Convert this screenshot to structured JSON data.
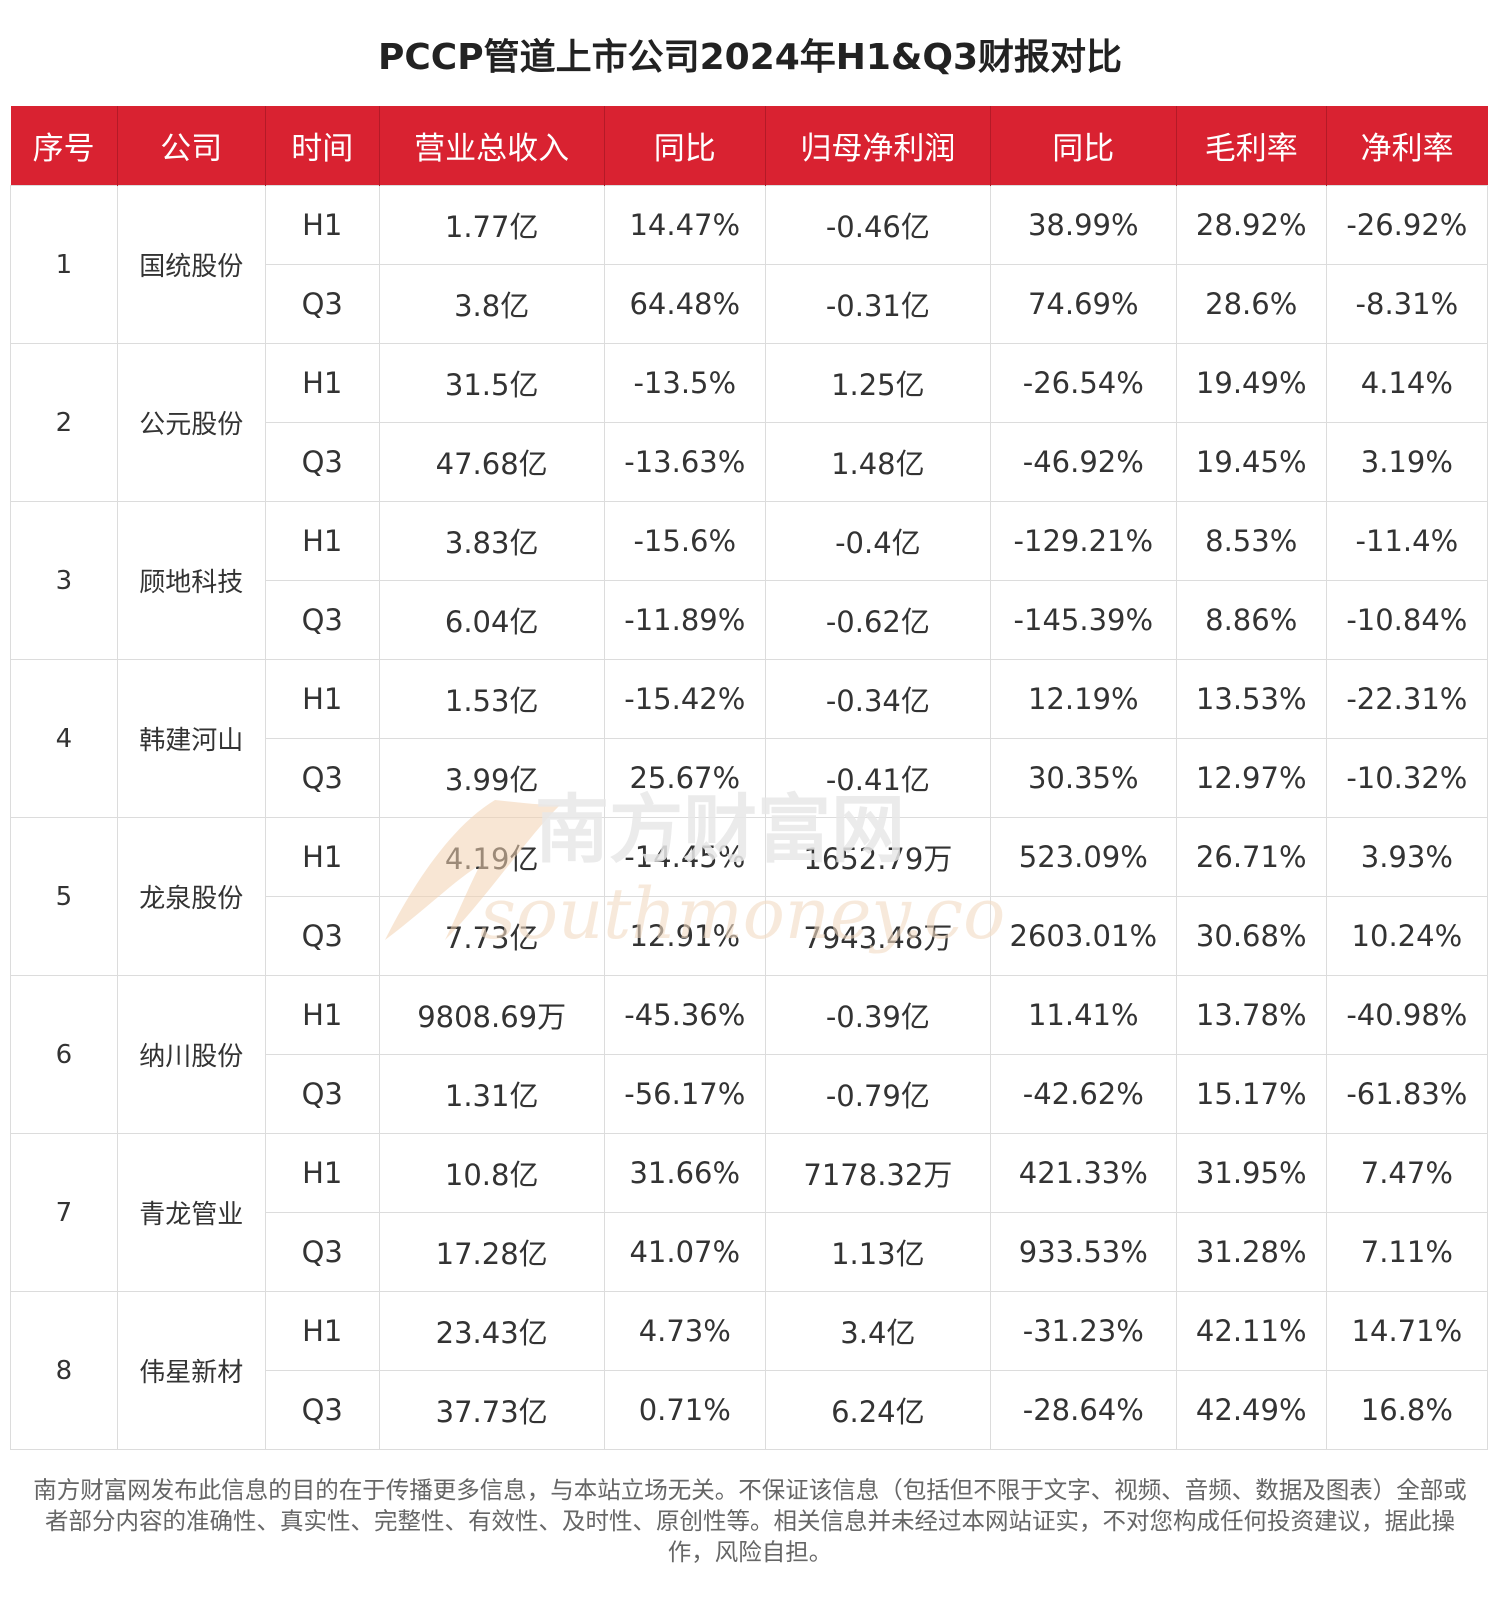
{
  "title": "PCCP管道上市公司2024年H1&Q3财报对比",
  "columns": [
    "序号",
    "公司",
    "时间",
    "营业总收入",
    "同比",
    "归母净利润",
    "同比",
    "毛利率",
    "净利率"
  ],
  "companies": [
    {
      "index": "1",
      "name": "国统股份",
      "rows": [
        {
          "period": "H1",
          "revenue": "1.77亿",
          "revenue_yoy": "14.47%",
          "net_profit": "-0.46亿",
          "profit_yoy": "38.99%",
          "gross_margin": "28.92%",
          "net_margin": "-26.92%"
        },
        {
          "period": "Q3",
          "revenue": "3.8亿",
          "revenue_yoy": "64.48%",
          "net_profit": "-0.31亿",
          "profit_yoy": "74.69%",
          "gross_margin": "28.6%",
          "net_margin": "-8.31%"
        }
      ]
    },
    {
      "index": "2",
      "name": "公元股份",
      "rows": [
        {
          "period": "H1",
          "revenue": "31.5亿",
          "revenue_yoy": "-13.5%",
          "net_profit": "1.25亿",
          "profit_yoy": "-26.54%",
          "gross_margin": "19.49%",
          "net_margin": "4.14%"
        },
        {
          "period": "Q3",
          "revenue": "47.68亿",
          "revenue_yoy": "-13.63%",
          "net_profit": "1.48亿",
          "profit_yoy": "-46.92%",
          "gross_margin": "19.45%",
          "net_margin": "3.19%"
        }
      ]
    },
    {
      "index": "3",
      "name": "顾地科技",
      "rows": [
        {
          "period": "H1",
          "revenue": "3.83亿",
          "revenue_yoy": "-15.6%",
          "net_profit": "-0.4亿",
          "profit_yoy": "-129.21%",
          "gross_margin": "8.53%",
          "net_margin": "-11.4%"
        },
        {
          "period": "Q3",
          "revenue": "6.04亿",
          "revenue_yoy": "-11.89%",
          "net_profit": "-0.62亿",
          "profit_yoy": "-145.39%",
          "gross_margin": "8.86%",
          "net_margin": "-10.84%"
        }
      ]
    },
    {
      "index": "4",
      "name": "韩建河山",
      "rows": [
        {
          "period": "H1",
          "revenue": "1.53亿",
          "revenue_yoy": "-15.42%",
          "net_profit": "-0.34亿",
          "profit_yoy": "12.19%",
          "gross_margin": "13.53%",
          "net_margin": "-22.31%"
        },
        {
          "period": "Q3",
          "revenue": "3.99亿",
          "revenue_yoy": "25.67%",
          "net_profit": "-0.41亿",
          "profit_yoy": "30.35%",
          "gross_margin": "12.97%",
          "net_margin": "-10.32%"
        }
      ]
    },
    {
      "index": "5",
      "name": "龙泉股份",
      "rows": [
        {
          "period": "H1",
          "revenue": "4.19亿",
          "revenue_yoy": "-14.45%",
          "net_profit": "1652.79万",
          "profit_yoy": "523.09%",
          "gross_margin": "26.71%",
          "net_margin": "3.93%"
        },
        {
          "period": "Q3",
          "revenue": "7.73亿",
          "revenue_yoy": "12.91%",
          "net_profit": "7943.48万",
          "profit_yoy": "2603.01%",
          "gross_margin": "30.68%",
          "net_margin": "10.24%"
        }
      ]
    },
    {
      "index": "6",
      "name": "纳川股份",
      "rows": [
        {
          "period": "H1",
          "revenue": "9808.69万",
          "revenue_yoy": "-45.36%",
          "net_profit": "-0.39亿",
          "profit_yoy": "11.41%",
          "gross_margin": "13.78%",
          "net_margin": "-40.98%"
        },
        {
          "period": "Q3",
          "revenue": "1.31亿",
          "revenue_yoy": "-56.17%",
          "net_profit": "-0.79亿",
          "profit_yoy": "-42.62%",
          "gross_margin": "15.17%",
          "net_margin": "-61.83%"
        }
      ]
    },
    {
      "index": "7",
      "name": "青龙管业",
      "rows": [
        {
          "period": "H1",
          "revenue": "10.8亿",
          "revenue_yoy": "31.66%",
          "net_profit": "7178.32万",
          "profit_yoy": "421.33%",
          "gross_margin": "31.95%",
          "net_margin": "7.47%"
        },
        {
          "period": "Q3",
          "revenue": "17.28亿",
          "revenue_yoy": "41.07%",
          "net_profit": "1.13亿",
          "profit_yoy": "933.53%",
          "gross_margin": "31.28%",
          "net_margin": "7.11%"
        }
      ]
    },
    {
      "index": "8",
      "name": "伟星新材",
      "rows": [
        {
          "period": "H1",
          "revenue": "23.43亿",
          "revenue_yoy": "4.73%",
          "net_profit": "3.4亿",
          "profit_yoy": "-31.23%",
          "gross_margin": "42.11%",
          "net_margin": "14.71%"
        },
        {
          "period": "Q3",
          "revenue": "37.73亿",
          "revenue_yoy": "0.71%",
          "net_profit": "6.24亿",
          "profit_yoy": "-28.64%",
          "gross_margin": "42.49%",
          "net_margin": "16.8%"
        }
      ]
    }
  ],
  "watermark": {
    "cn": "南方财富网",
    "en": "southmoney.com"
  },
  "disclaimer": "南方财富网发布此信息的目的在于传播更多信息，与本站立场无关。不保证该信息（包括但不限于文字、视频、音频、数据及图表）全部或者部分内容的准确性、真实性、完整性、有效性、及时性、原创性等。相关信息并未经过本网站证实，不对您构成任何投资建议，据此操作，风险自担。",
  "colors": {
    "header_bg": "#d92231",
    "header_text": "#ffffff",
    "border": "#dcdcdc",
    "watermark": "#f0c9a0"
  }
}
